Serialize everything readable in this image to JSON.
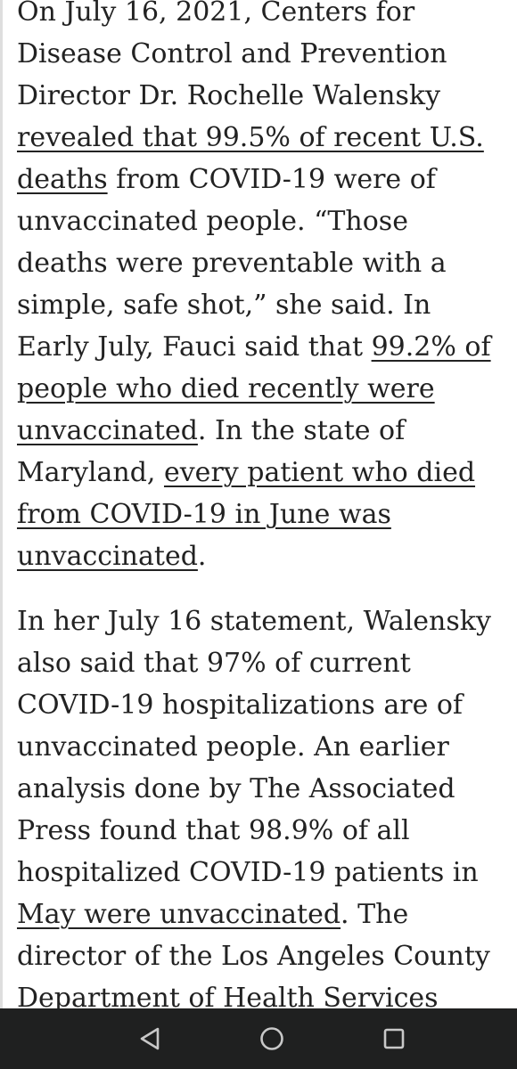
{
  "article": {
    "p1": {
      "t1": "On July 16, 2021, Centers for Disease Control and Prevention Director Dr. Rochelle Walensky ",
      "link1": "revealed that 99.5% of recent U.S. deaths",
      "t2": " from COVID-19 were of unvaccinated people. “Those deaths were preventable with a simple, safe shot,” she said. In Early July, Fauci said that ",
      "link2": "99.2% of people who died recently were unvaccinated",
      "t3": ". In the state of Maryland, ",
      "link3": "every patient who died from COVID-19 in June was unvaccinated",
      "t4": "."
    },
    "p2": {
      "t1": "In her July 16 statement, Walensky also said that 97% of current COVID-19 hospitalizations are of unvaccinated people. An earlier analysis done by The Associated Press found that 98.9% of all hospitalized COVID-19 patients in ",
      "link1": "May were unvaccinated",
      "t2": ". The director of the Los Angeles County Department of Health Services"
    }
  },
  "navbar": {
    "background": "#1f2020",
    "icon_color": "#c8c8c8",
    "buttons": [
      {
        "name": "back",
        "icon": "triangle-back-icon"
      },
      {
        "name": "home",
        "icon": "circle-home-icon"
      },
      {
        "name": "recents",
        "icon": "square-recents-icon"
      }
    ]
  }
}
